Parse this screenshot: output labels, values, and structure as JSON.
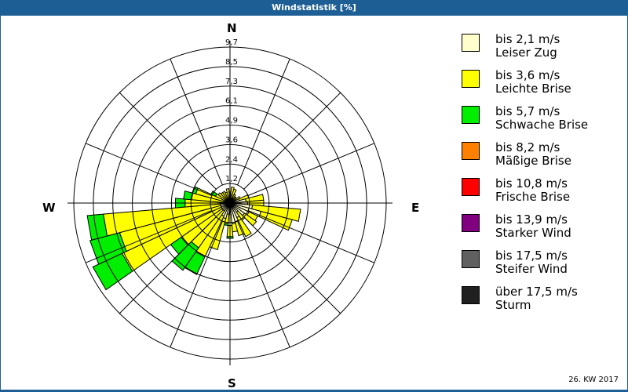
{
  "title": "Windstatistik [%]",
  "footer": "26. KW 2017",
  "compass": {
    "n": "N",
    "e": "E",
    "s": "S",
    "w": "W"
  },
  "legend": [
    {
      "range": "bis 2,1 m/s",
      "name": "Leiser Zug",
      "color": "#ffffcc"
    },
    {
      "range": "bis 3,6 m/s",
      "name": "Leichte Brise",
      "color": "#ffff00"
    },
    {
      "range": "bis 5,7 m/s",
      "name": "Schwache Brise",
      "color": "#00ee00"
    },
    {
      "range": "bis 8,2 m/s",
      "name": "Mäßige Brise",
      "color": "#ff8000"
    },
    {
      "range": "bis 10,8 m/s",
      "name": "Frische Brise",
      "color": "#ff0000"
    },
    {
      "range": "bis 13,9 m/s",
      "name": "Starker Wind",
      "color": "#800080"
    },
    {
      "range": "bis 17,5 m/s",
      "name": "Steifer Wind",
      "color": "#606060"
    },
    {
      "range": "über 17,5 m/s",
      "name": "Sturm",
      "color": "#202020"
    }
  ],
  "chart_data": {
    "type": "wind-rose",
    "title": "Windstatistik [%]",
    "subtitle": "26. KW 2017",
    "radial_axis": {
      "unit": "%",
      "max": 9.7,
      "ticks": [
        1.2,
        2.4,
        3.6,
        4.9,
        6.1,
        7.3,
        8.5,
        9.7
      ]
    },
    "sector_width_deg": 10,
    "series_names": [
      "bis 2,1 m/s",
      "bis 3,6 m/s",
      "bis 5,7 m/s"
    ],
    "sectors": [
      {
        "dir": 0,
        "values": [
          0.3,
          0.4,
          0.0
        ]
      },
      {
        "dir": 10,
        "values": [
          0.5,
          0.5,
          0.0
        ]
      },
      {
        "dir": 20,
        "values": [
          0.4,
          0.5,
          0.0
        ]
      },
      {
        "dir": 30,
        "values": [
          0.3,
          0.3,
          0.0
        ]
      },
      {
        "dir": 40,
        "values": [
          0.3,
          0.2,
          0.0
        ]
      },
      {
        "dir": 50,
        "values": [
          0.3,
          0.2,
          0.0
        ]
      },
      {
        "dir": 60,
        "values": [
          0.4,
          0.3,
          0.0
        ]
      },
      {
        "dir": 70,
        "values": [
          0.6,
          0.6,
          0.0
        ]
      },
      {
        "dir": 80,
        "values": [
          1.0,
          1.1,
          0.0
        ]
      },
      {
        "dir": 90,
        "values": [
          1.1,
          1.0,
          0.0
        ]
      },
      {
        "dir": 100,
        "values": [
          1.4,
          3.0,
          0.0
        ]
      },
      {
        "dir": 110,
        "values": [
          2.0,
          2.0,
          0.0
        ]
      },
      {
        "dir": 120,
        "values": [
          1.3,
          0.6,
          0.0
        ]
      },
      {
        "dir": 130,
        "values": [
          1.1,
          0.9,
          0.0
        ]
      },
      {
        "dir": 140,
        "values": [
          0.7,
          0.6,
          0.0
        ]
      },
      {
        "dir": 150,
        "values": [
          1.0,
          1.3,
          0.0
        ]
      },
      {
        "dir": 160,
        "values": [
          1.2,
          0.9,
          0.0
        ]
      },
      {
        "dir": 170,
        "values": [
          1.3,
          0.5,
          0.0
        ]
      },
      {
        "dir": 180,
        "values": [
          1.4,
          0.7,
          0.1
        ]
      },
      {
        "dir": 190,
        "values": [
          0.7,
          0.6,
          0.1
        ]
      },
      {
        "dir": 200,
        "values": [
          1.0,
          2.0,
          0.0
        ]
      },
      {
        "dir": 210,
        "values": [
          0.9,
          2.8,
          1.2
        ]
      },
      {
        "dir": 220,
        "values": [
          0.6,
          2.8,
          1.7
        ]
      },
      {
        "dir": 230,
        "values": [
          0.6,
          3.1,
          0.8
        ]
      },
      {
        "dir": 240,
        "values": [
          0.6,
          6.8,
          2.0
        ]
      },
      {
        "dir": 250,
        "values": [
          0.6,
          6.5,
          1.9
        ]
      },
      {
        "dir": 260,
        "values": [
          0.6,
          7.3,
          1.0
        ]
      },
      {
        "dir": 270,
        "values": [
          0.5,
          2.3,
          0.6
        ]
      },
      {
        "dir": 280,
        "values": [
          0.4,
          2.0,
          0.5
        ]
      },
      {
        "dir": 290,
        "values": [
          0.4,
          1.8,
          0.2
        ]
      },
      {
        "dir": 300,
        "values": [
          0.3,
          0.7,
          0.3
        ]
      },
      {
        "dir": 310,
        "values": [
          0.3,
          0.6,
          0.0
        ]
      },
      {
        "dir": 320,
        "values": [
          0.3,
          0.5,
          0.0
        ]
      },
      {
        "dir": 330,
        "values": [
          0.3,
          0.5,
          0.0
        ]
      },
      {
        "dir": 340,
        "values": [
          0.3,
          0.4,
          0.0
        ]
      },
      {
        "dir": 350,
        "values": [
          0.4,
          0.5,
          0.0
        ]
      }
    ],
    "legend_position": "right"
  }
}
